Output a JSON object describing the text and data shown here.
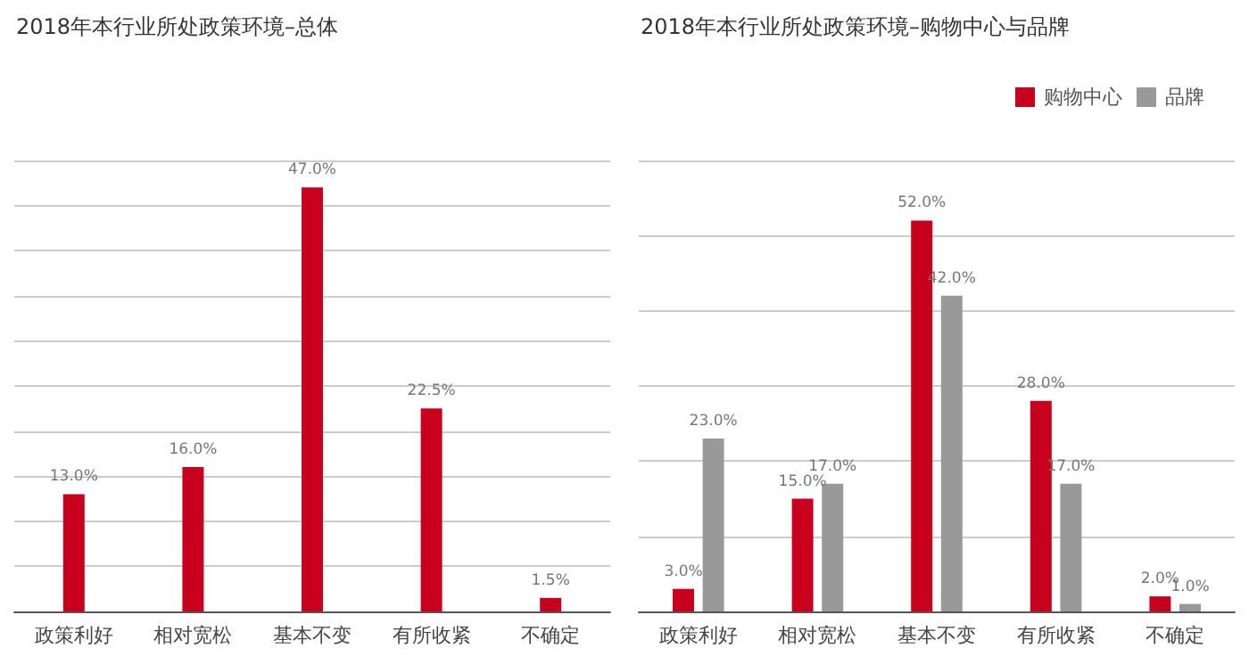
{
  "chart_data": [
    {
      "type": "bar",
      "title": "2018年本行业所处政策环境–总体",
      "categories": [
        "政策利好",
        "相对宽松",
        "基本不变",
        "有所收紧",
        "不确定"
      ],
      "series": [
        {
          "color": "#c8001e",
          "values": [
            13.0,
            16.0,
            47.0,
            22.5,
            1.5
          ],
          "value_labels": [
            "13.0%",
            "16.0%",
            "47.0%",
            "22.5%",
            "1.5%"
          ]
        }
      ],
      "ylim": [
        0,
        50
      ],
      "yticks": [
        0,
        5,
        10,
        15,
        20,
        25,
        30,
        35,
        40,
        45,
        50
      ],
      "grid": "y",
      "tick_labels": "x",
      "legend": false
    },
    {
      "type": "bar",
      "title": "2018年本行业所处政策环境–购物中心与品牌",
      "categories": [
        "政策利好",
        "相对宽松",
        "基本不变",
        "有所收紧",
        "不确定"
      ],
      "series": [
        {
          "name": "购物中心",
          "color": "#c8001e",
          "values": [
            3.0,
            15.0,
            52.0,
            28.0,
            2.0
          ],
          "value_labels": [
            "3.0%",
            "15.0%",
            "52.0%",
            "28.0%",
            "2.0%"
          ]
        },
        {
          "name": "品牌",
          "color": "#999999",
          "values": [
            23.0,
            17.0,
            42.0,
            17.0,
            1.0
          ],
          "value_labels": [
            "23.0%",
            "17.0%",
            "42.0%",
            "17.0%",
            "1.0%"
          ]
        }
      ],
      "ylim": [
        0,
        60
      ],
      "yticks": [
        0,
        10,
        20,
        30,
        40,
        50,
        60
      ],
      "grid": "y",
      "tick_labels": "x",
      "legend": "top right"
    }
  ]
}
